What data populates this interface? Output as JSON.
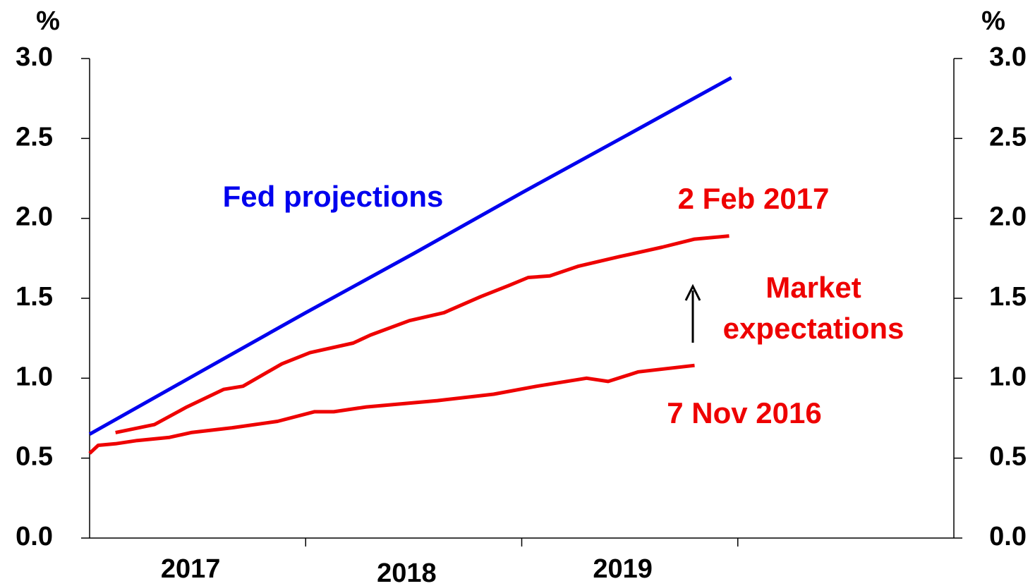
{
  "chart_data": {
    "type": "line",
    "y_unit_label": "%",
    "y2_unit_label": "%",
    "categories": [
      "2017",
      "2018",
      "2019",
      null
    ],
    "ylim": [
      0,
      3
    ],
    "yticks": [
      {
        "value": 0,
        "label": "0.0"
      },
      0.5,
      {
        "value": 1,
        "label": "1.0"
      },
      1.5,
      {
        "value": 2,
        "label": "2.0"
      },
      2.5,
      {
        "value": 3,
        "label": "3.0"
      }
    ],
    "y2lim": [
      0,
      3
    ],
    "y2ticks": [
      {
        "value": 0,
        "label": "0.0"
      },
      0.5,
      {
        "value": 1,
        "label": "1.0"
      },
      1.5,
      {
        "value": 2,
        "label": "2.0"
      },
      2.5,
      {
        "value": 3,
        "label": "3.0"
      }
    ],
    "series": [
      {
        "name": "Fed projections",
        "color": "#0000ee",
        "x": [
          2017.0,
          2017.5,
          2018.0,
          2018.5,
          2019.0,
          2019.5,
          2019.97
        ],
        "values": [
          0.65,
          1.03,
          1.41,
          1.78,
          2.16,
          2.53,
          2.88
        ]
      },
      {
        "name": "2 Feb 2017",
        "color": "#ee0000",
        "x": [
          2017.12,
          2017.3,
          2017.45,
          2017.62,
          2017.71,
          2017.89,
          2018.02,
          2018.22,
          2018.3,
          2018.48,
          2018.64,
          2018.81,
          2018.94,
          2019.03,
          2019.13,
          2019.26,
          2019.45,
          2019.65,
          2019.8,
          2019.96
        ],
        "values": [
          0.66,
          0.71,
          0.82,
          0.93,
          0.95,
          1.09,
          1.16,
          1.22,
          1.27,
          1.36,
          1.41,
          1.51,
          1.58,
          1.63,
          1.64,
          1.7,
          1.76,
          1.82,
          1.87,
          1.89
        ]
      },
      {
        "name": "7 Nov 2016",
        "color": "#ee0000",
        "x": [
          2017.0,
          2017.04,
          2017.12,
          2017.22,
          2017.37,
          2017.47,
          2017.66,
          2017.87,
          2018.04,
          2018.13,
          2018.28,
          2018.61,
          2018.87,
          2019.07,
          2019.3,
          2019.4,
          2019.54,
          2019.8
        ],
        "values": [
          0.53,
          0.58,
          0.59,
          0.61,
          0.63,
          0.66,
          0.69,
          0.73,
          0.79,
          0.79,
          0.82,
          0.86,
          0.9,
          0.95,
          1.0,
          0.98,
          1.04,
          1.08
        ]
      }
    ],
    "annotations": [
      {
        "text": "Market",
        "color": "#ee0000"
      },
      {
        "text": "expectations",
        "color": "#ee0000"
      }
    ]
  }
}
